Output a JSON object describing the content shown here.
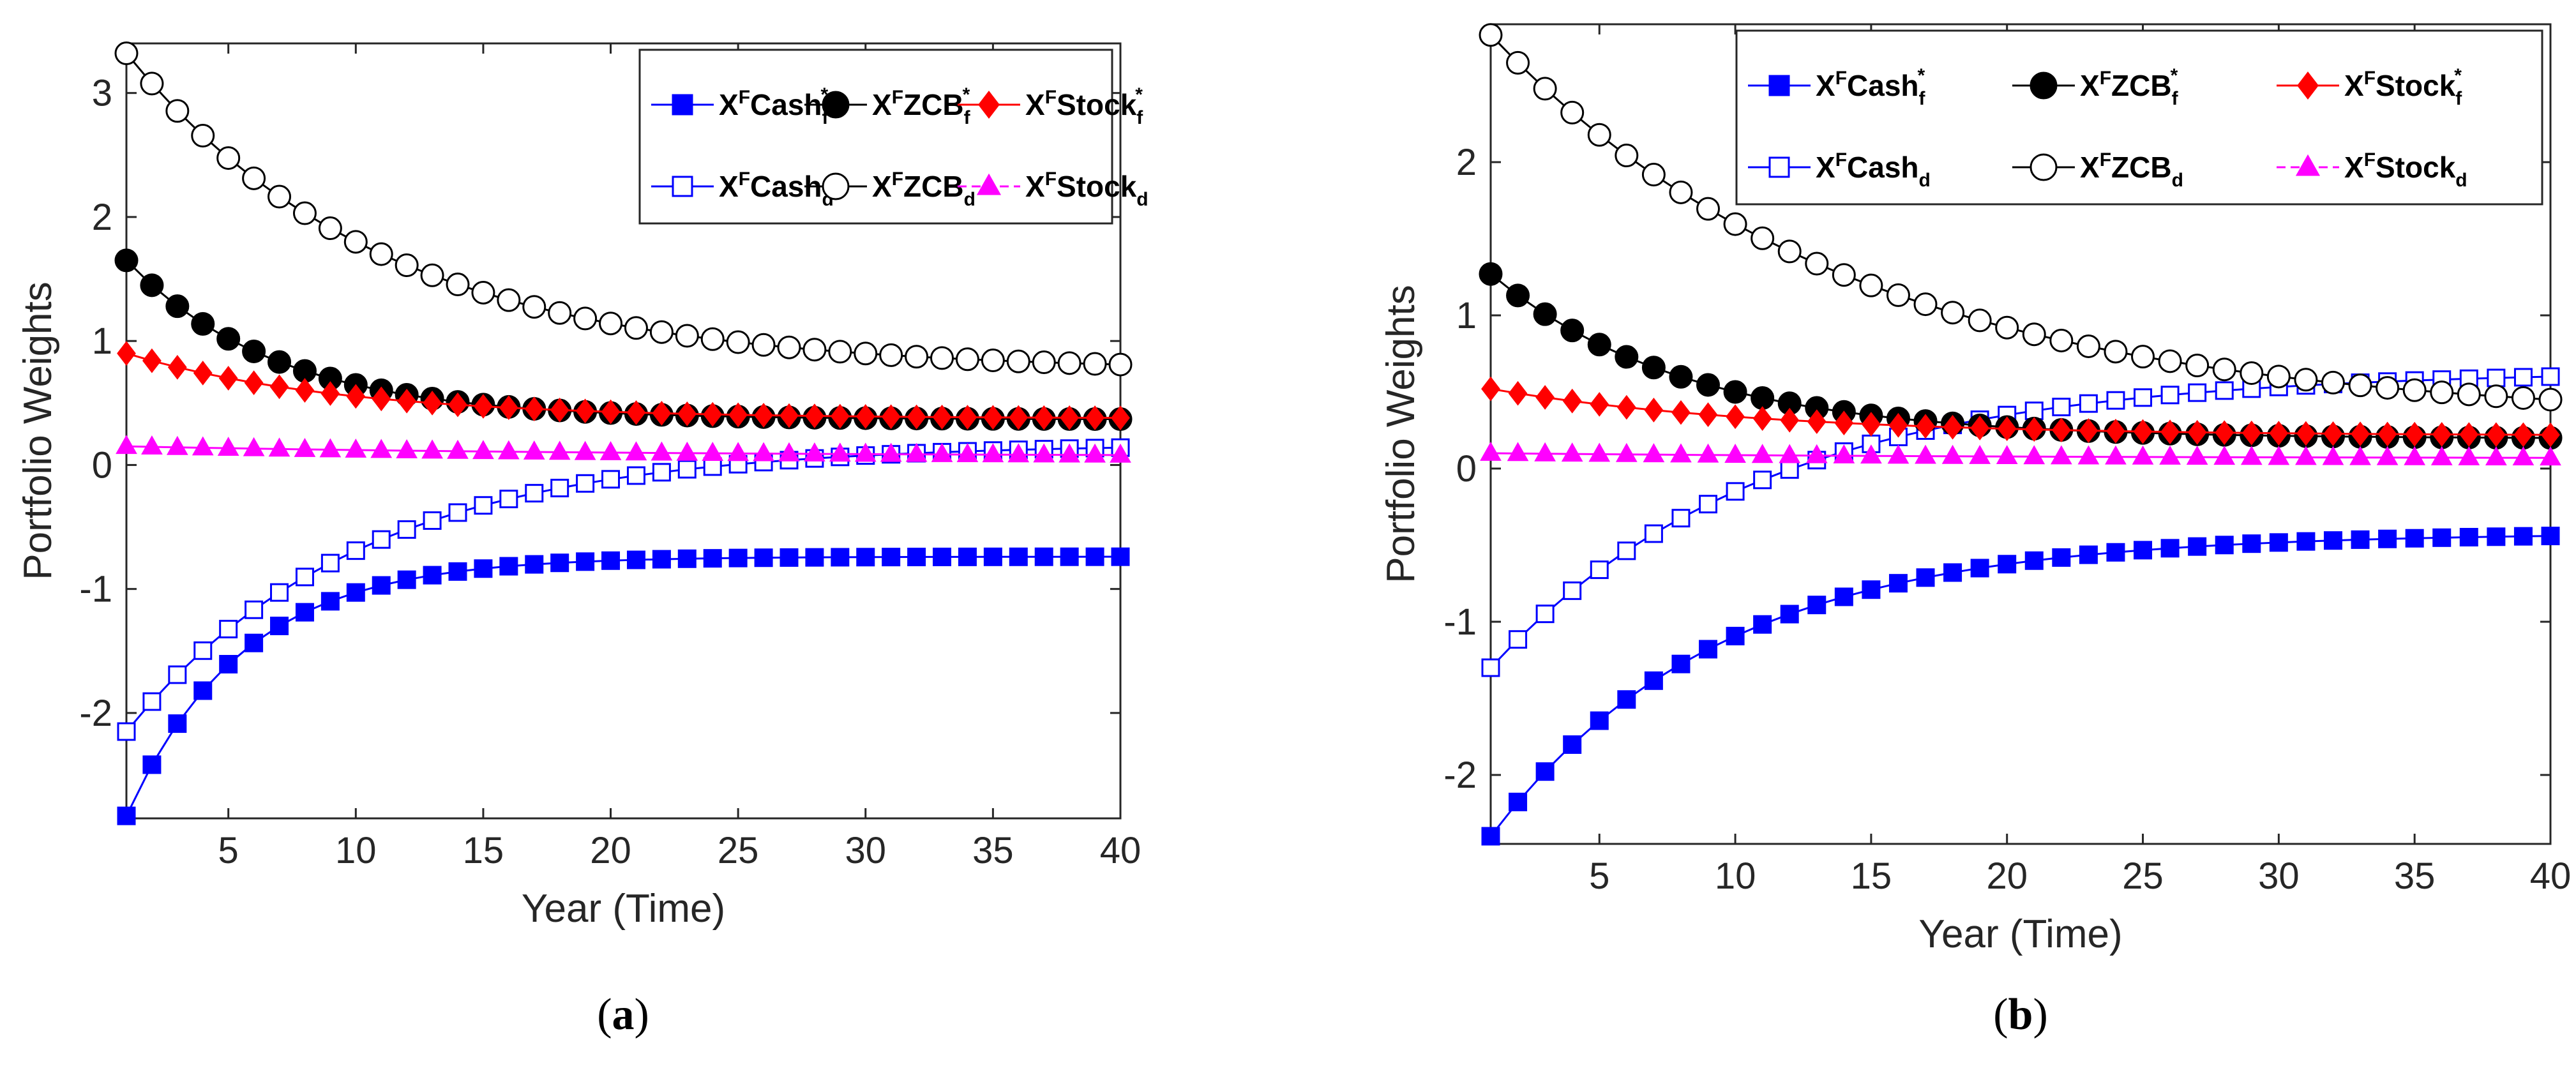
{
  "chart_data": [
    {
      "panel": "a",
      "type": "line",
      "caption": "a",
      "xlabel": "Year (Time)",
      "ylabel": "Portfolio Weights",
      "xlim": [
        1,
        40
      ],
      "ylim": [
        -2.85,
        3.4
      ],
      "xticks": [
        5,
        10,
        15,
        20,
        25,
        30,
        35,
        40
      ],
      "yticks": [
        -2,
        -1,
        0,
        1,
        2,
        3
      ],
      "x_start": 1,
      "x_end": 40,
      "legend_position": "top-right",
      "series": [
        {
          "name": "X^F Cash_f^*",
          "base": "X",
          "sup": "F",
          "label": "Cash",
          "sub": "f",
          "subsup": "*",
          "color": "#0000ff",
          "marker": "square",
          "filled": true,
          "start": -2.83,
          "end": -0.74,
          "k": 0.22
        },
        {
          "name": "X^F ZCB_f^*",
          "base": "X",
          "sup": "F",
          "label": "ZCB",
          "sub": "f",
          "subsup": "*",
          "color": "#000000",
          "marker": "circle",
          "filled": true,
          "start": 1.65,
          "end": 0.37,
          "k": 0.17
        },
        {
          "name": "X^F Stock_f^*",
          "base": "X",
          "sup": "F",
          "label": "Stock",
          "sub": "f",
          "subsup": "*",
          "color": "#ff0000",
          "marker": "diamond",
          "filled": true,
          "start": 0.9,
          "end": 0.38,
          "k": 0.12
        },
        {
          "name": "X^F Cash_d",
          "base": "X",
          "sup": "F",
          "label": "Cash",
          "sub": "d",
          "subsup": "",
          "color": "#0000ff",
          "marker": "square",
          "filled": false,
          "start": -2.15,
          "end": 0.14,
          "k": 0.11
        },
        {
          "name": "X^F ZCB_d",
          "base": "X",
          "sup": "F",
          "label": "ZCB",
          "sub": "d",
          "subsup": "",
          "color": "#000000",
          "marker": "circle",
          "filled": false,
          "start": 3.32,
          "end": 0.81,
          "k": 0.1
        },
        {
          "name": "X^F Stock_d",
          "base": "X",
          "sup": "F",
          "label": "Stock",
          "sub": "d",
          "subsup": "",
          "color": "#ff00ff",
          "marker": "triangle",
          "filled": true,
          "start": 0.15,
          "end": 0.08,
          "k": 0.05
        }
      ]
    },
    {
      "panel": "b",
      "type": "line",
      "caption": "b",
      "xlabel": "Year (Time)",
      "ylabel": "Portfolio Weights",
      "xlim": [
        1,
        40
      ],
      "ylim": [
        -2.45,
        2.9
      ],
      "xticks": [
        5,
        10,
        15,
        20,
        25,
        30,
        35,
        40
      ],
      "yticks": [
        -2,
        -1,
        0,
        1,
        2
      ],
      "x_start": 1,
      "x_end": 40,
      "legend_position": "top-right",
      "series": [
        {
          "name": "X^F Cash_f^*",
          "base": "X",
          "sup": "F",
          "label": "Cash",
          "sub": "f",
          "subsup": "*",
          "color": "#0000ff",
          "marker": "square",
          "filled": true,
          "start": -2.4,
          "end": -0.44,
          "k": 0.12
        },
        {
          "name": "X^F ZCB_f^*",
          "base": "X",
          "sup": "F",
          "label": "ZCB",
          "sub": "f",
          "subsup": "*",
          "color": "#000000",
          "marker": "circle",
          "filled": true,
          "start": 1.27,
          "end": 0.2,
          "k": 0.14
        },
        {
          "name": "X^F Stock_f^*",
          "base": "X",
          "sup": "F",
          "label": "Stock",
          "sub": "f",
          "subsup": "*",
          "color": "#ff0000",
          "marker": "diamond",
          "filled": true,
          "start": 0.52,
          "end": 0.22,
          "k": 0.1
        },
        {
          "name": "X^F Cash_d",
          "base": "X",
          "sup": "F",
          "label": "Cash",
          "sub": "d",
          "subsup": "",
          "color": "#0000ff",
          "marker": "square",
          "filled": false,
          "start": -1.3,
          "end": 0.6,
          "k": 0.1
        },
        {
          "name": "X^F ZCB_d",
          "base": "X",
          "sup": "F",
          "label": "ZCB",
          "sub": "d",
          "subsup": "",
          "color": "#000000",
          "marker": "circle",
          "filled": false,
          "start": 2.83,
          "end": 0.45,
          "k": 0.075
        },
        {
          "name": "X^F Stock_d",
          "base": "X",
          "sup": "F",
          "label": "Stock",
          "sub": "d",
          "subsup": "",
          "color": "#ff00ff",
          "marker": "triangle",
          "filled": true,
          "start": 0.1,
          "end": 0.07,
          "k": 0.05
        }
      ]
    }
  ]
}
